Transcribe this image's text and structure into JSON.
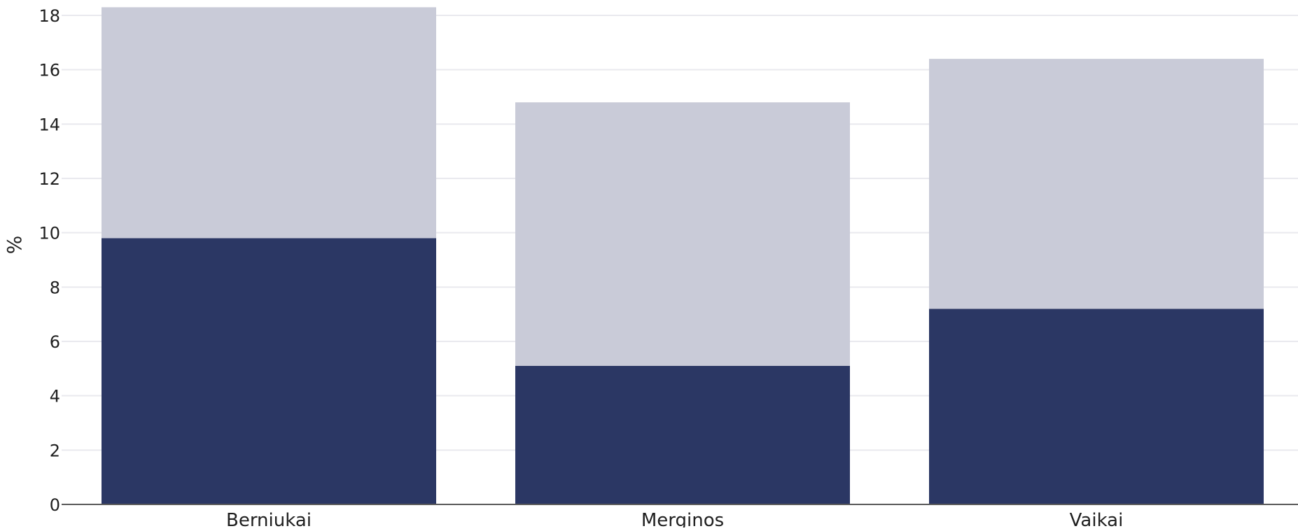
{
  "chart_data": {
    "type": "bar",
    "stacked": true,
    "categories": [
      "Berniukai",
      "Merginos",
      "Vaikai"
    ],
    "series": [
      {
        "values": [
          9.8,
          5.1,
          7.2
        ]
      },
      {
        "values": [
          8.5,
          9.7,
          9.2
        ]
      }
    ],
    "ylabel": "%",
    "ylim": [
      0,
      18
    ],
    "yticks": [
      "0",
      "2",
      "4",
      "6",
      "8",
      "10",
      "12",
      "14",
      "16",
      "18"
    ],
    "grid": true,
    "colors": {
      "series_0": "#2b3764",
      "series_1": "#c9cbd8",
      "grid": "#e9e9ee",
      "baseline": "#5a5a5a"
    }
  }
}
